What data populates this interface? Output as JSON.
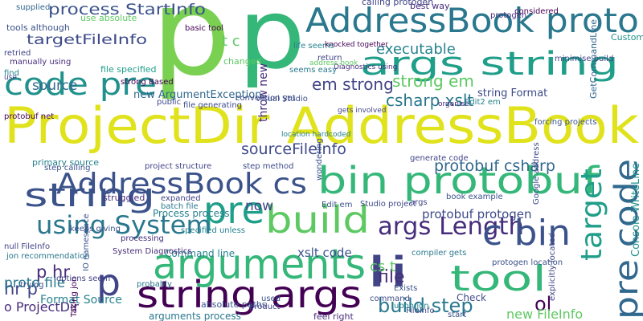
{
  "words": [
    "ProjectDir AddressBook",
    "p",
    "p",
    "AddressBook proto",
    "args string",
    "code pre",
    "process StartInfo",
    "targetFileInfo",
    "source",
    "executable",
    "t c",
    "em strong",
    "strong em",
    "csharp xslt",
    "string Format",
    "new ArgumentException",
    "throw new",
    "Visual Studio",
    "AddressBook cs",
    "bin protobuf",
    "pre code",
    "target",
    "string",
    "sourceFileInfo",
    "protobuf csharp",
    "build",
    "pre",
    "using System",
    "args Length",
    "c bin",
    "li",
    "tool",
    "arguments",
    "string args",
    "p",
    "p hr",
    "hr p",
    "proto file",
    "o ProjectDir",
    "Format Source",
    "build step",
    "file",
    "ol",
    "now",
    "protobuf protogen",
    "xslt code",
    "cs t",
    "Console WriteLine",
    "Process process",
    "Command line",
    "absolute paths",
    "arguments process",
    "feel right",
    "new FileInfo",
    "Check",
    "generate code",
    "primary source",
    "project structure",
    "struggled",
    "expanded",
    "batch file",
    "step calling",
    "protobuf net",
    "tools although",
    "retried",
    "manually using",
    "use absolute",
    "file specified",
    "file generating",
    "changed",
    "basic tool",
    "calling protogen",
    "protogen",
    "best way",
    "considered",
    "minimise build",
    "life seems",
    "seems easy",
    "return",
    "Diagnostics using",
    "knocked together",
    "address book",
    "strong Based",
    "public",
    "convention yet",
    "forcing projects",
    "organise",
    "Edit2 em",
    "GetCommandLine",
    "Custom",
    "Google address",
    "explicitly located",
    "protogen location",
    "compiler gets",
    "book example",
    "args",
    "Studio project",
    "gets involved",
    "trying",
    "options seem",
    "processing",
    "probably",
    "product",
    "used",
    "command",
    "Exists",
    "FileInfo",
    "start",
    "upon jon",
    "keeps giving",
    "jon recommendation",
    "System Diagnostics",
    "IO namespace",
    "supplied",
    "find",
    "use",
    "Taking jon",
    "step method",
    "Edit em",
    "wondering",
    "specified unless",
    "location hardcoded",
    "null FileInfo"
  ]
}
